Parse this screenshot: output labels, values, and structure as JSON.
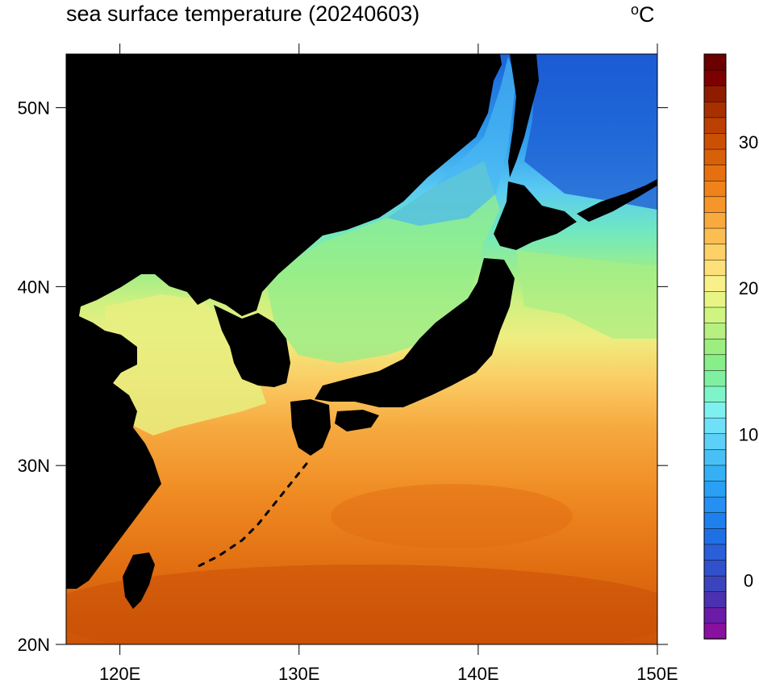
{
  "title": "sea surface temperature (20240603)",
  "unit": {
    "degree": "o",
    "letter": "C"
  },
  "map": {
    "lon_range": [
      117,
      150
    ],
    "lat_range": [
      20,
      53
    ],
    "lon_ticks": [
      {
        "value": 120,
        "label": "120E"
      },
      {
        "value": 130,
        "label": "130E"
      },
      {
        "value": 140,
        "label": "140E"
      },
      {
        "value": 150,
        "label": "150E"
      }
    ],
    "lat_ticks": [
      {
        "value": 50,
        "label": "50N"
      },
      {
        "value": 40,
        "label": "40N"
      },
      {
        "value": 30,
        "label": "30N"
      },
      {
        "value": 20,
        "label": "20N"
      }
    ],
    "land_color": "#000000"
  },
  "colorbar": {
    "range": [
      -4,
      36
    ],
    "ticks": [
      {
        "value": 30,
        "label": "30"
      },
      {
        "value": 20,
        "label": "20"
      },
      {
        "value": 10,
        "label": "10"
      },
      {
        "value": 0,
        "label": "0"
      }
    ],
    "colors": [
      "#8a10a0",
      "#6a1ca8",
      "#4b30b0",
      "#3a45bd",
      "#3050cc",
      "#2a5fd8",
      "#2070e5",
      "#1e80ee",
      "#2690f2",
      "#2aa0f5",
      "#35b0f5",
      "#48c0f5",
      "#5cd0f7",
      "#6ee0f8",
      "#7ef0f0",
      "#7ef5c8",
      "#80f0a0",
      "#88ee88",
      "#9cee80",
      "#b5f080",
      "#cff580",
      "#e8f585",
      "#f8f088",
      "#fde07a",
      "#fdd068",
      "#fbbe52",
      "#f9aa3e",
      "#f6962a",
      "#f0821a",
      "#e67010",
      "#d86008",
      "#cc5004",
      "#bc4002",
      "#a83000",
      "#901c00",
      "#7c0000",
      "#6a0000"
    ]
  }
}
